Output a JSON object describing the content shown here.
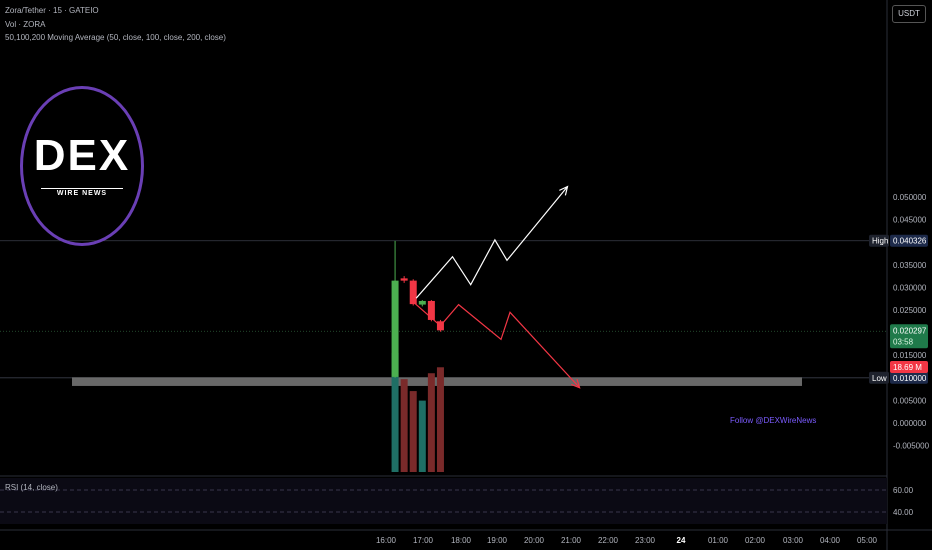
{
  "header": {
    "symbol_line": "Zora/Tether · 15 · GATEIO",
    "volume_line": "Vol · ZORA",
    "ma_line": "50,100,200 Moving Average (50, close, 100, close, 200, close)"
  },
  "currency": "USDT",
  "logo": {
    "title": "DEX",
    "subtitle": "WIRE NEWS"
  },
  "watermark": "Follow @DEXWireNews",
  "rsi": {
    "label": "RSI (14, close)",
    "levels": [
      60.0,
      40.0
    ],
    "level_labels": [
      "60.00",
      "40.00"
    ]
  },
  "price_tags": {
    "high": {
      "label": "High",
      "value": "0.040326"
    },
    "last": {
      "value": "0.020297",
      "countdown": "03:58"
    },
    "low": {
      "label": "Low",
      "value": "0.010000"
    },
    "volume": {
      "value": "18.69 M"
    }
  },
  "colors": {
    "up": "#4caf50",
    "down": "#f23645",
    "vol_up": "#1f6f65",
    "vol_down": "#7a2a2a",
    "zone": "#7a7a7a",
    "bullish_path": "#ffffff",
    "bearish_path": "#f23645"
  },
  "chart_data": {
    "type": "candlestick",
    "title": "",
    "y_ticks": [
      0.05,
      0.045,
      0.035,
      0.03,
      0.025,
      0.015,
      0.005,
      0.0,
      -0.005
    ],
    "y_tick_labels": [
      "0.050000",
      "0.045000",
      "0.035000",
      "0.030000",
      "0.025000",
      "0.015000",
      "0.005000",
      "0.000000",
      "-0.005000"
    ],
    "ylim": [
      -0.0065,
      0.0565
    ],
    "x_ticks": [
      "16:00",
      "17:00",
      "18:00",
      "19:00",
      "20:00",
      "21:00",
      "22:00",
      "23:00",
      "24",
      "01:00",
      "02:00",
      "03:00",
      "04:00",
      "05:00"
    ],
    "candles": [
      {
        "time": "16:15",
        "open": 0.0102,
        "high": 0.0403,
        "low": 0.01,
        "close": 0.0315
      },
      {
        "time": "16:30",
        "open": 0.032,
        "high": 0.0325,
        "low": 0.031,
        "close": 0.0315
      },
      {
        "time": "16:45",
        "open": 0.0315,
        "high": 0.0318,
        "low": 0.026,
        "close": 0.0263
      },
      {
        "time": "17:00",
        "open": 0.0262,
        "high": 0.0272,
        "low": 0.0258,
        "close": 0.027
      },
      {
        "time": "17:15",
        "open": 0.027,
        "high": 0.0272,
        "low": 0.0225,
        "close": 0.0228
      },
      {
        "time": "17:30",
        "open": 0.0225,
        "high": 0.0228,
        "low": 0.0202,
        "close": 0.0205
      }
    ],
    "volume": [
      {
        "time": "16:15",
        "value": 1.0,
        "dir": "up"
      },
      {
        "time": "16:30",
        "value": 0.78,
        "dir": "down"
      },
      {
        "time": "16:45",
        "value": 0.68,
        "dir": "down"
      },
      {
        "time": "17:00",
        "value": 0.6,
        "dir": "up"
      },
      {
        "time": "17:15",
        "value": 0.83,
        "dir": "down"
      },
      {
        "time": "17:30",
        "value": 0.88,
        "dir": "down"
      }
    ],
    "support_zone": {
      "from_time": "12:00",
      "to_time": "03:00",
      "low": 0.0082,
      "high": 0.0101
    },
    "bullish_path": [
      {
        "time": "16:50",
        "price": 0.0276
      },
      {
        "time": "17:50",
        "price": 0.0368
      },
      {
        "time": "18:20",
        "price": 0.0306
      },
      {
        "time": "19:00",
        "price": 0.0405
      },
      {
        "time": "19:20",
        "price": 0.036
      },
      {
        "time": "21:00",
        "price": 0.0523
      }
    ],
    "bearish_path": [
      {
        "time": "16:45",
        "price": 0.0268
      },
      {
        "time": "17:30",
        "price": 0.0215
      },
      {
        "time": "18:00",
        "price": 0.0262
      },
      {
        "time": "19:10",
        "price": 0.0185
      },
      {
        "time": "19:25",
        "price": 0.0245
      },
      {
        "time": "21:20",
        "price": 0.0078
      }
    ]
  }
}
